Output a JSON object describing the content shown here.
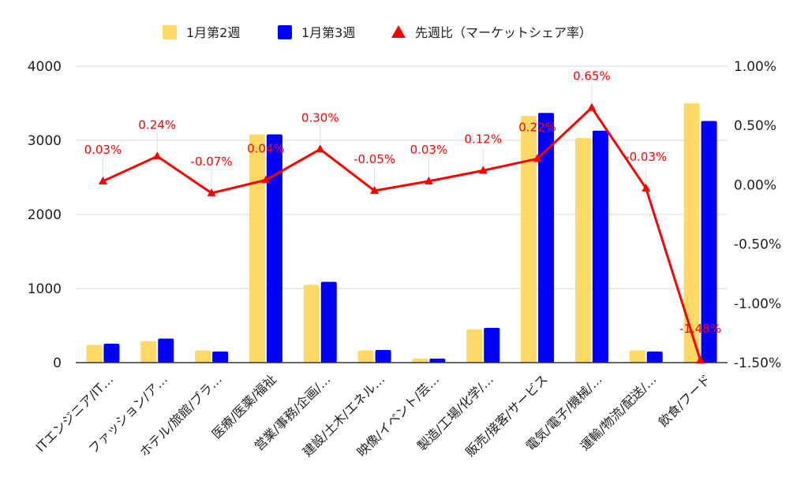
{
  "chart_data": {
    "type": "bar",
    "categories": [
      "ITエンジニア/IT…",
      "ファッション/ア…",
      "ホテル/旅館/ブラ…",
      "医療/医薬/福祉",
      "営業/事務/企画/…",
      "建設/土木/エネル…",
      "映像/イベント/芸…",
      "製造/工場/化学/…",
      "販売/接客/サービス",
      "電気/電子/機械/…",
      "運輸/物流/配送/…",
      "飲食/フード"
    ],
    "series": [
      {
        "name": "1月第2週",
        "axis": "left",
        "kind": "bar",
        "color": "#ffd966",
        "values": [
          240,
          290,
          165,
          3080,
          1050,
          165,
          55,
          450,
          3330,
          3030,
          165,
          3500
        ]
      },
      {
        "name": "1月第3週",
        "axis": "left",
        "kind": "bar",
        "color": "#0000ff",
        "values": [
          255,
          325,
          150,
          3080,
          1090,
          170,
          55,
          470,
          3370,
          3130,
          150,
          3260
        ]
      },
      {
        "name": "先週比（マーケットシェア率）",
        "axis": "right",
        "kind": "line",
        "color": "#ff0000",
        "values": [
          0.03,
          0.24,
          -0.07,
          0.04,
          0.3,
          -0.05,
          0.03,
          0.12,
          0.22,
          0.65,
          -0.03,
          -1.48
        ],
        "labels": [
          "0.03%",
          "0.24%",
          "-0.07%",
          "0.04%",
          "0.30%",
          "-0.05%",
          "0.03%",
          "0.12%",
          "0.22%",
          "0.65%",
          "-0.03%",
          "-1.48%"
        ]
      }
    ],
    "left_axis": {
      "min": 0,
      "max": 4000,
      "ticks": [
        "0",
        "1000",
        "2000",
        "3000",
        "4000"
      ]
    },
    "right_axis": {
      "min": -1.5,
      "max": 1.0,
      "ticks": [
        "-1.50%",
        "-1.00%",
        "-0.50%",
        "0.00%",
        "0.50%",
        "1.00%"
      ]
    },
    "grid": true,
    "legend_position": "top"
  }
}
